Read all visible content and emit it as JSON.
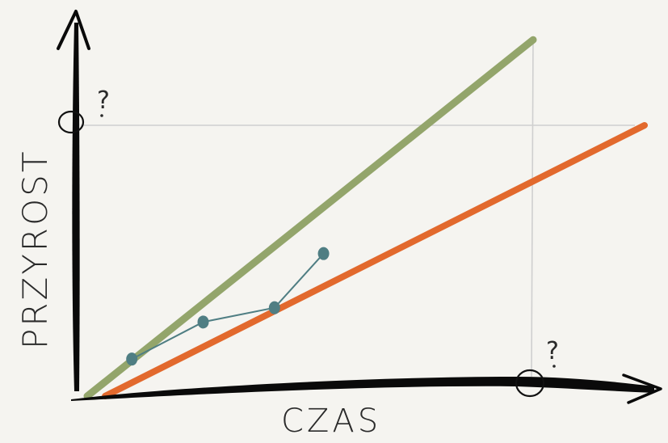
{
  "chart_data": {
    "type": "line",
    "title": "",
    "xlabel": "CZAS",
    "ylabel": "PRZYROST",
    "xlim": [
      0,
      10
    ],
    "ylim": [
      0,
      10
    ],
    "grid": false,
    "markers": {
      "y_question": "?",
      "x_question": "?",
      "y_target": 9.5,
      "x_target": 10
    },
    "series": [
      {
        "color": "#93a56b",
        "x": [
          0,
          10
        ],
        "y": [
          0,
          12.5
        ]
      },
      {
        "color": "#e2692d",
        "x": [
          0.4,
          12.5
        ],
        "y": [
          0,
          9.5
        ]
      },
      {
        "color": "#4f7e83",
        "x": [
          1.0,
          2.6,
          4.2,
          5.3
        ],
        "y": [
          1.3,
          2.6,
          3.1,
          5.0
        ]
      }
    ],
    "colors": {
      "axis": "#0a0a0a",
      "guide": "#cfcfcf",
      "background": "#f5f4f0"
    }
  }
}
